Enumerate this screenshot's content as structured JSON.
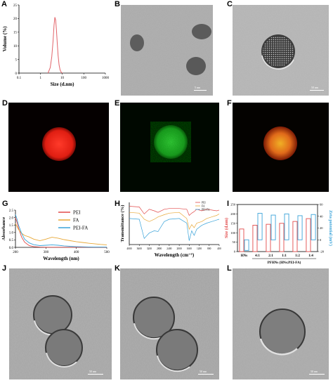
{
  "panel_labels": {
    "A": "A",
    "B": "B",
    "C": "C",
    "D": "D",
    "E": "E",
    "F": "F",
    "G": "G",
    "H": "H",
    "I": "I",
    "J": "J",
    "K": "K",
    "L": "L"
  },
  "scale_bars": {
    "b": "5 nm",
    "c": "50 nm",
    "j": "50 nm",
    "k": "50 nm",
    "l": "50 nm"
  },
  "chart_data": [
    {
      "panel": "A",
      "type": "line",
      "xlabel": "Size (d.nm)",
      "ylabel": "Volume (%)",
      "xscale": "log",
      "xlim": [
        0.1,
        1000
      ],
      "ylim": [
        0,
        25
      ],
      "xticks": [
        "0.1",
        "1",
        "10",
        "100",
        "1000"
      ],
      "yticks": [
        "0",
        "5",
        "10",
        "15",
        "20",
        "25"
      ],
      "color": "#e2646a",
      "x": [
        2.2,
        2.8,
        3.3,
        3.8,
        4.2,
        4.6,
        5.0,
        5.4,
        5.9,
        6.5,
        7.2,
        8.0,
        9.0,
        10.2
      ],
      "values": [
        0,
        2,
        6,
        12,
        17.5,
        20.5,
        19.5,
        16,
        11,
        6.5,
        3,
        1.2,
        0.3,
        0
      ]
    },
    {
      "panel": "G",
      "type": "line",
      "xlabel": "Wavelength (nm)",
      "ylabel": "Absorbance",
      "xlim": [
        200,
        500
      ],
      "ylim": [
        0,
        2.5
      ],
      "xticks": [
        "200",
        "300",
        "400",
        "500"
      ],
      "yticks": [
        "0.0",
        "0.5",
        "1.0",
        "1.5",
        "2.0",
        "2.5"
      ],
      "x": [
        200,
        205,
        210,
        220,
        230,
        245,
        260,
        280,
        300,
        320,
        340,
        360,
        380,
        400,
        420,
        440,
        460,
        480,
        500
      ],
      "legend_position": "top-right",
      "series": [
        {
          "name": "PEI",
          "color": "#e24b4b",
          "values": [
            2.0,
            1.7,
            1.3,
            0.7,
            0.35,
            0.12,
            0.05,
            0.02,
            0.01,
            0.01,
            0.01,
            0.01,
            0.01,
            0.01,
            0.01,
            0.01,
            0.01,
            0.01,
            0.01
          ]
        },
        {
          "name": "FA",
          "color": "#e8a837",
          "values": [
            1.6,
            1.4,
            1.2,
            0.95,
            0.8,
            0.7,
            0.55,
            0.45,
            0.55,
            0.68,
            0.62,
            0.52,
            0.45,
            0.38,
            0.33,
            0.28,
            0.24,
            0.2,
            0.17
          ]
        },
        {
          "name": "PEI-FA",
          "color": "#3aa3d9",
          "values": [
            2.2,
            1.9,
            1.5,
            0.95,
            0.55,
            0.3,
            0.18,
            0.12,
            0.14,
            0.17,
            0.14,
            0.1,
            0.07,
            0.05,
            0.04,
            0.03,
            0.02,
            0.02,
            0.02
          ]
        }
      ]
    },
    {
      "panel": "H",
      "type": "line",
      "xlabel": "Wavelength (cm⁻¹)",
      "ylabel": "Transmittance (%)",
      "xlim": [
        4000,
        400
      ],
      "xticks": [
        "4000",
        "3600",
        "3200",
        "2800",
        "2400",
        "2000",
        "1600",
        "1200",
        "800",
        "400"
      ],
      "x": [
        4000,
        3600,
        3400,
        3200,
        3000,
        2850,
        2600,
        2400,
        2000,
        1700,
        1600,
        1500,
        1400,
        1300,
        1100,
        900,
        700,
        500,
        400
      ],
      "legend_position": "top-right",
      "series": [
        {
          "name": "PEI",
          "color": "#e24b4b",
          "values": [
            90,
            89,
            80,
            86,
            84,
            82,
            86,
            87,
            87,
            86,
            78,
            81,
            83,
            86,
            84,
            86,
            85,
            84,
            85
          ]
        },
        {
          "name": "FA",
          "color": "#e8a837",
          "values": [
            82,
            81,
            73,
            70,
            73,
            76,
            79,
            81,
            82,
            74,
            60,
            66,
            62,
            68,
            70,
            74,
            76,
            78,
            80
          ]
        },
        {
          "name": "PEI-FA",
          "color": "#3aa3d9",
          "values": [
            74,
            73,
            48,
            55,
            58,
            57,
            70,
            73,
            74,
            68,
            45,
            58,
            52,
            60,
            65,
            68,
            70,
            72,
            73
          ]
        }
      ]
    },
    {
      "panel": "I",
      "type": "bar",
      "xlabel": "PFHNs (HNs:PEI-FA)",
      "ylabel": "Size (d.nm)",
      "ylabel_right": "Zeta potential (mV)",
      "categories": [
        "HNs",
        "4:1",
        "2:1",
        "1:1",
        "1:2",
        "1:4"
      ],
      "ylim": [
        0,
        250
      ],
      "ylim_right": [
        -20,
        60
      ],
      "yticks": [
        "0",
        "50",
        "100",
        "150",
        "200",
        "250"
      ],
      "yticks_right": [
        "-20",
        "0",
        "20",
        "40",
        "60"
      ],
      "series": [
        {
          "name": "Size (d.nm)",
          "color": "#e24b4b",
          "values": [
            120,
            140,
            145,
            150,
            160,
            175
          ]
        },
        {
          "name": "Zeta potential (mV)",
          "color": "#3aa3d9",
          "values": [
            -18,
            45,
            42,
            44,
            41,
            43
          ]
        }
      ]
    }
  ]
}
